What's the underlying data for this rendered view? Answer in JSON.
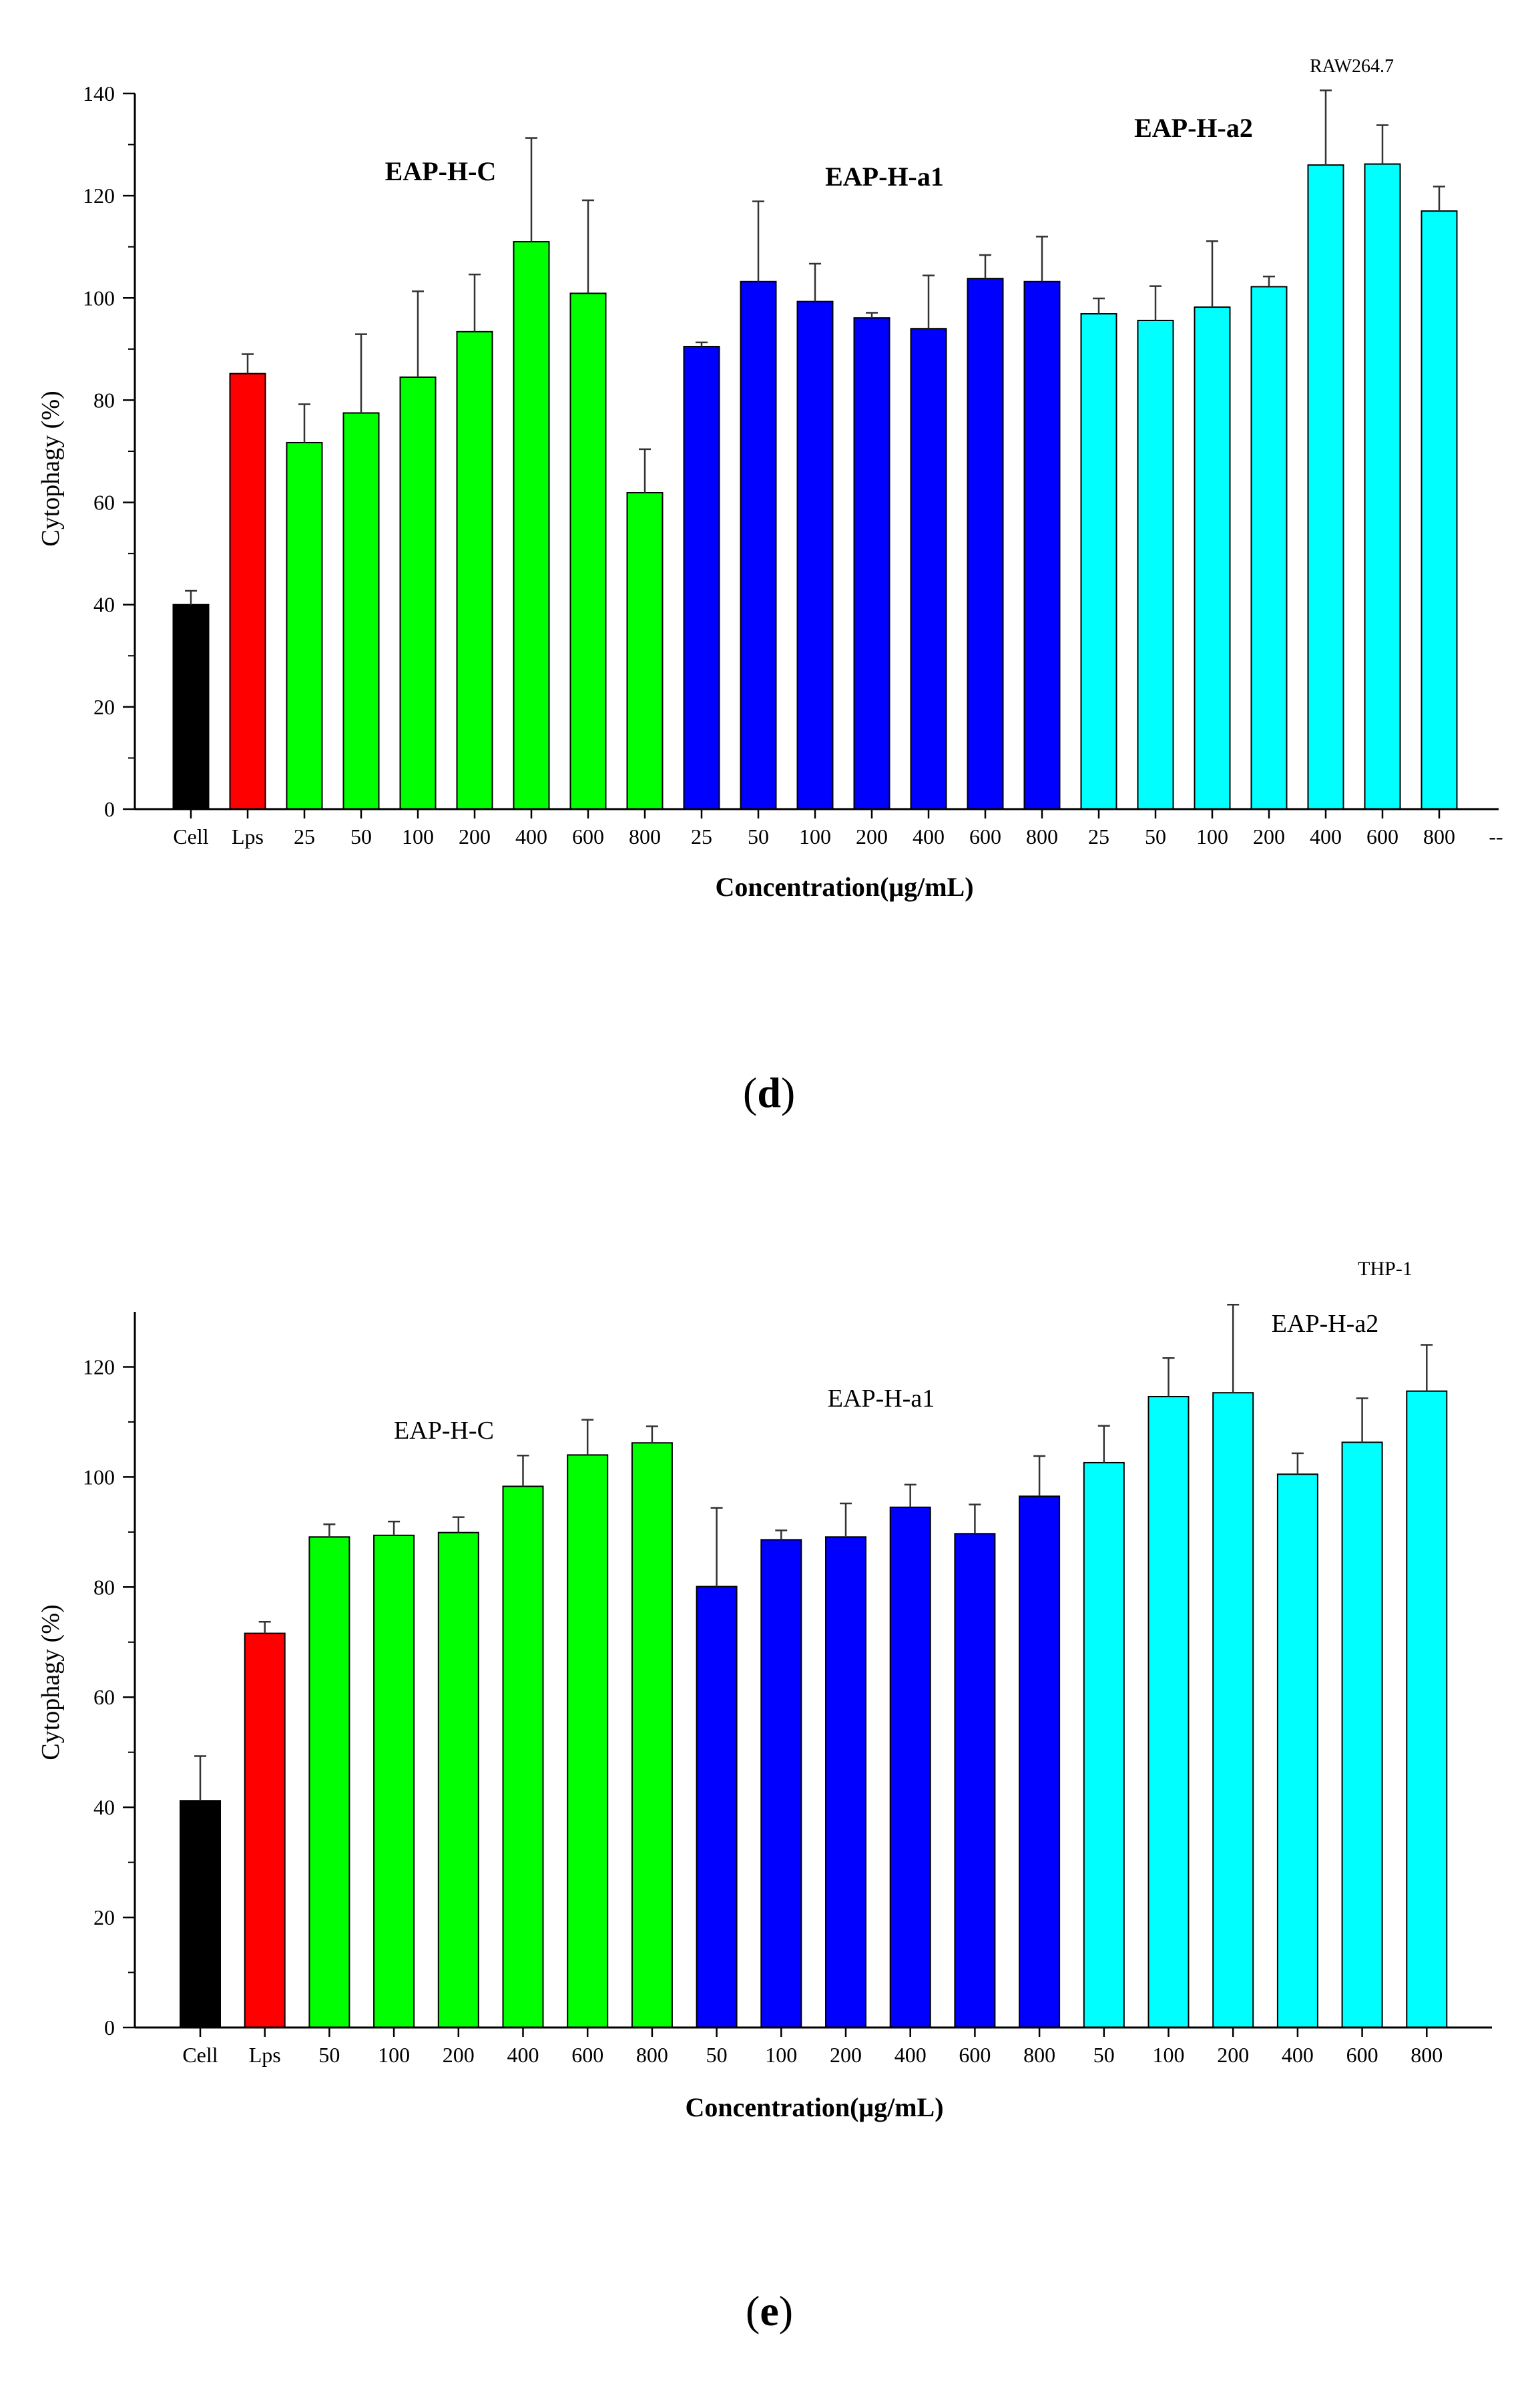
{
  "chart_data": [
    {
      "type": "bar",
      "panel_label": "d",
      "cell_line": "RAW264.7",
      "xlabel": "Concentration(μg/mL)",
      "ylabel": "Cytophagy (%)",
      "ylim": [
        0,
        140
      ],
      "yticks": [
        0,
        20,
        40,
        60,
        80,
        100,
        120,
        140
      ],
      "trailing_tick_label": "--",
      "group_labels": [
        "EAP-H-C",
        "EAP-H-a1",
        "EAP-H-a2"
      ],
      "categories": [
        "Cell",
        "Lps",
        "25",
        "50",
        "100",
        "200",
        "400",
        "600",
        "800",
        "25",
        "50",
        "100",
        "200",
        "400",
        "600",
        "800",
        "25",
        "50",
        "100",
        "200",
        "400",
        "600",
        "800"
      ],
      "values": [
        40,
        85.2,
        71.7,
        77.5,
        84.5,
        93.4,
        111,
        100.9,
        61.9,
        90.5,
        103.2,
        99.3,
        96.1,
        94,
        103.8,
        103.2,
        96.9,
        95.6,
        98.2,
        102.2,
        126,
        126.2,
        117
      ],
      "errors": [
        2.7,
        3.8,
        7.5,
        15.4,
        16.8,
        11.2,
        20.3,
        18.2,
        8.5,
        0.8,
        15.7,
        7.4,
        1.0,
        10.4,
        4.6,
        8.8,
        3.0,
        6.7,
        12.9,
        2.0,
        14.6,
        7.6,
        4.8
      ],
      "bar_colors": [
        "#000000",
        "#ff0000",
        "#00ff00",
        "#00ff00",
        "#00ff00",
        "#00ff00",
        "#00ff00",
        "#00ff00",
        "#00ff00",
        "#0000ff",
        "#0000ff",
        "#0000ff",
        "#0000ff",
        "#0000ff",
        "#0000ff",
        "#0000ff",
        "#00ffff",
        "#00ffff",
        "#00ffff",
        "#00ffff",
        "#00ffff",
        "#00ffff",
        "#00ffff"
      ]
    },
    {
      "type": "bar",
      "panel_label": "e",
      "cell_line": "THP-1",
      "xlabel": "Concentration(μg/mL)",
      "ylabel": "Cytophagy (%)",
      "ylim": [
        0,
        130
      ],
      "yticks": [
        0,
        20,
        40,
        60,
        80,
        100,
        120
      ],
      "group_labels": [
        "EAP-H-C",
        "EAP-H-a1",
        "EAP-H-a2"
      ],
      "categories": [
        "Cell",
        "Lps",
        "50",
        "100",
        "200",
        "400",
        "600",
        "800",
        "50",
        "100",
        "200",
        "400",
        "600",
        "800",
        "50",
        "100",
        "200",
        "400",
        "600",
        "800"
      ],
      "values": [
        41.2,
        71.6,
        89.1,
        89.4,
        89.9,
        98.3,
        104,
        106.2,
        80.1,
        88.6,
        89.1,
        94.5,
        89.7,
        96.5,
        102.6,
        114.6,
        115.3,
        100.5,
        106.3,
        115.6
      ],
      "errors": [
        8.1,
        2.1,
        2.3,
        2.5,
        2.8,
        5.6,
        6.4,
        3.0,
        14.3,
        1.7,
        6.1,
        4.1,
        5.3,
        7.3,
        6.7,
        7.0,
        16.0,
        3.8,
        8.0,
        8.4
      ],
      "bar_colors": [
        "#000000",
        "#ff0000",
        "#00ff00",
        "#00ff00",
        "#00ff00",
        "#00ff00",
        "#00ff00",
        "#00ff00",
        "#0000ff",
        "#0000ff",
        "#0000ff",
        "#0000ff",
        "#0000ff",
        "#0000ff",
        "#00ffff",
        "#00ffff",
        "#00ffff",
        "#00ffff",
        "#00ffff",
        "#00ffff"
      ]
    }
  ]
}
